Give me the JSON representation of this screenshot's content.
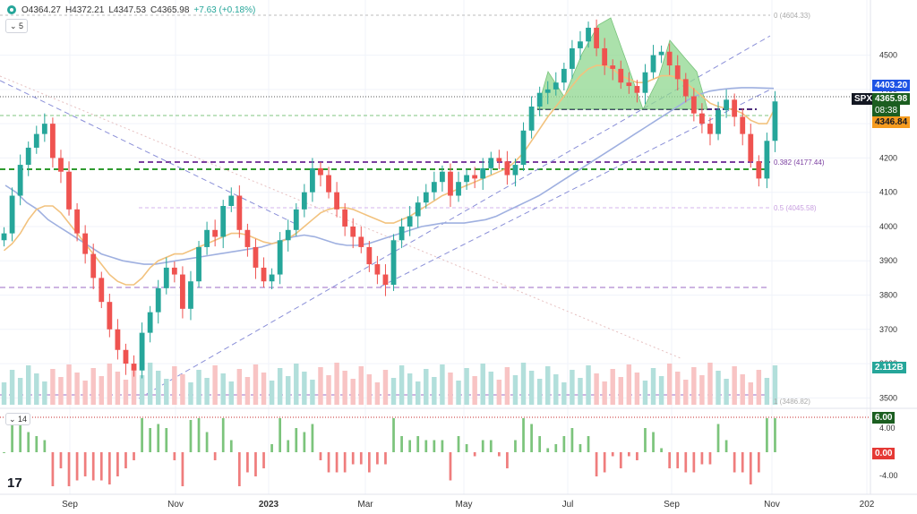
{
  "header": {
    "open": "O4364.27",
    "high": "H4372.21",
    "low": "L4347.53",
    "close": "C4365.98",
    "change": "+7.63 (+0.18%)"
  },
  "controls": {
    "ma_toggle": "5",
    "osc_toggle": "14"
  },
  "colors": {
    "up": "#26a69a",
    "down": "#ef5350",
    "ma_fast": "#f2c27e",
    "ma_slow": "#9fb0e0",
    "fib_green": "#2e9b2e",
    "fib_purple": "#7b3fa0",
    "pattern_fill": "#8fd88f"
  },
  "tags": {
    "symbol": "SPX",
    "price": "4365.98",
    "countdown": "08:38",
    "ma_value": "4403.20",
    "ma2_value": "4346.84",
    "volume": "2.112B",
    "osc_upper": "6.00",
    "osc_lower": "0.00"
  },
  "fib_labels": {
    "f0": "0 (4604.33)",
    "f382": "0.382 (4177.44)",
    "f05": "0.5 (4045.58)",
    "f1": "1 (3486.82)"
  },
  "chart_data": {
    "type": "candlestick",
    "x_ticks": [
      "Sep",
      "Nov",
      "2023",
      "Mar",
      "May",
      "Jul",
      "Sep",
      "Nov",
      "202"
    ],
    "y_ticks": [
      4500,
      4400,
      4300,
      4200,
      4100,
      4000,
      3900,
      3800,
      3700,
      3600,
      3500
    ],
    "osc_ticks": [
      "4.00",
      "-4.00"
    ],
    "ylim": [
      3480,
      4640
    ],
    "series_close": [
      3980,
      4090,
      4180,
      4230,
      4270,
      4300,
      4200,
      4160,
      4050,
      3980,
      3920,
      3850,
      3780,
      3700,
      3640,
      3600,
      3580,
      3690,
      3750,
      3820,
      3880,
      3860,
      3760,
      3840,
      3940,
      3990,
      3970,
      4060,
      4090,
      3990,
      3940,
      3880,
      3840,
      3860,
      3960,
      3990,
      4050,
      4100,
      4170,
      4150,
      4100,
      4050,
      4000,
      3970,
      3940,
      3890,
      3860,
      3830,
      3960,
      4000,
      4030,
      4070,
      4100,
      4130,
      4160,
      4090,
      4130,
      4150,
      4140,
      4170,
      4200,
      4190,
      4150,
      4180,
      4280,
      4350,
      4390,
      4400,
      4420,
      4460,
      4520,
      4540,
      4580,
      4520,
      4470,
      4460,
      4420,
      4410,
      4390,
      4450,
      4500,
      4510,
      4470,
      4430,
      4380,
      4330,
      4300,
      4270,
      4340,
      4370,
      4320,
      4270,
      4190,
      4140,
      4250,
      4365
    ],
    "ma_fast": [
      3930,
      3950,
      3980,
      4020,
      4050,
      4060,
      4060,
      4040,
      4010,
      3980,
      3950,
      3920,
      3890,
      3860,
      3840,
      3830,
      3830,
      3850,
      3880,
      3900,
      3910,
      3920,
      3920,
      3930,
      3940,
      3950,
      3960,
      3970,
      3980,
      3980,
      3975,
      3965,
      3955,
      3950,
      3955,
      3965,
      3980,
      4000,
      4020,
      4040,
      4050,
      4055,
      4055,
      4050,
      4040,
      4030,
      4020,
      4010,
      4010,
      4020,
      4030,
      4045,
      4060,
      4075,
      4090,
      4100,
      4110,
      4120,
      4130,
      4140,
      4150,
      4160,
      4170,
      4190,
      4215,
      4250,
      4285,
      4320,
      4350,
      4380,
      4410,
      4440,
      4460,
      4470,
      4470,
      4460,
      4440,
      4430,
      4420,
      4420,
      4430,
      4440,
      4440,
      4435,
      4420,
      4400,
      4380,
      4360,
      4350,
      4345,
      4340,
      4330,
      4310,
      4300,
      4300,
      4346
    ],
    "ma_slow": [
      4120,
      4100,
      4070,
      4050,
      4020,
      4000,
      3980,
      3960,
      3940,
      3920,
      3910,
      3900,
      3895,
      3890,
      3890,
      3895,
      3900,
      3905,
      3910,
      3915,
      3920,
      3925,
      3930,
      3935,
      3940,
      3950,
      3960,
      3970,
      3975,
      3970,
      3960,
      3950,
      3945,
      3945,
      3950,
      3960,
      3970,
      3980,
      3990,
      4000,
      4005,
      4010,
      4010,
      4010,
      4015,
      4020,
      4030,
      4045,
      4060,
      4075,
      4090,
      4110,
      4130,
      4150,
      4170,
      4190,
      4210,
      4230,
      4250,
      4270,
      4290,
      4310,
      4330,
      4350,
      4370,
      4385,
      4395,
      4400,
      4403,
      4405,
      4405,
      4404,
      4403
    ]
  }
}
